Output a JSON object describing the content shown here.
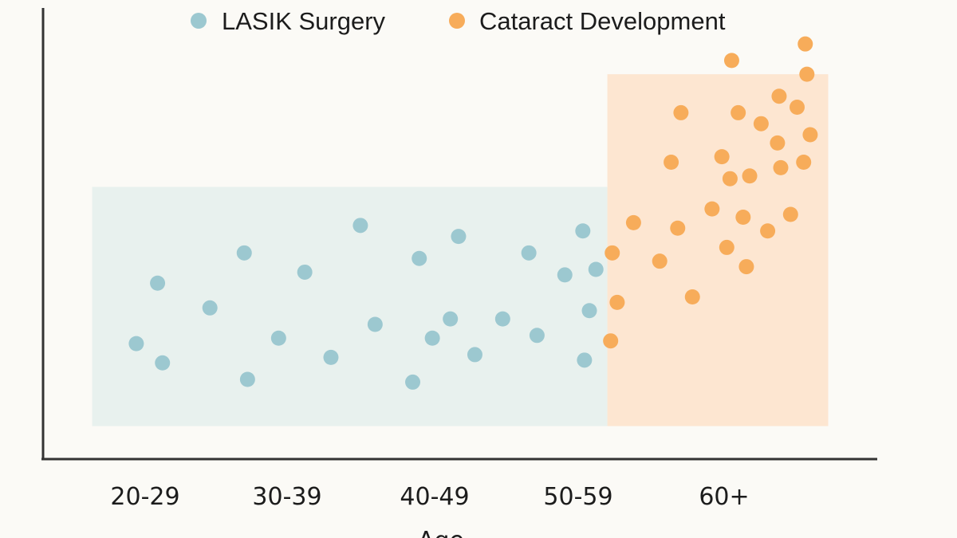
{
  "chart_data": {
    "type": "scatter",
    "title": "",
    "xlabel": "Age",
    "ylabel": "",
    "categories": [
      "20-29",
      "30-39",
      "40-49",
      "50-59",
      "60+"
    ],
    "grid": false,
    "legend": "top-center",
    "colors": {
      "lasik": "#9cc8d0",
      "cataract": "#f7ac5a",
      "lasik_band": "#e8f1ee",
      "cataract_band": "#fde6d1",
      "axis": "#333333"
    },
    "series": [
      {
        "name": "LASIK Surgery",
        "points": [
          {
            "x": 0.22,
            "y": 0.3
          },
          {
            "x": 0.35,
            "y": 0.52
          },
          {
            "x": 0.38,
            "y": 0.23
          },
          {
            "x": 0.67,
            "y": 0.43
          },
          {
            "x": 0.88,
            "y": 0.63
          },
          {
            "x": 0.9,
            "y": 0.17
          },
          {
            "x": 1.09,
            "y": 0.32
          },
          {
            "x": 1.25,
            "y": 0.56
          },
          {
            "x": 1.41,
            "y": 0.25
          },
          {
            "x": 1.59,
            "y": 0.73
          },
          {
            "x": 1.68,
            "y": 0.37
          },
          {
            "x": 1.91,
            "y": 0.16
          },
          {
            "x": 1.95,
            "y": 0.61
          },
          {
            "x": 2.03,
            "y": 0.32
          },
          {
            "x": 2.14,
            "y": 0.39
          },
          {
            "x": 2.19,
            "y": 0.69
          },
          {
            "x": 2.29,
            "y": 0.26
          },
          {
            "x": 2.46,
            "y": 0.39
          },
          {
            "x": 2.62,
            "y": 0.63
          },
          {
            "x": 2.67,
            "y": 0.33
          },
          {
            "x": 2.84,
            "y": 0.55
          },
          {
            "x": 2.95,
            "y": 0.71
          },
          {
            "x": 2.96,
            "y": 0.24
          },
          {
            "x": 2.99,
            "y": 0.42
          },
          {
            "x": 3.03,
            "y": 0.57
          }
        ]
      },
      {
        "name": "Cataract Development",
        "points": [
          {
            "x": 3.12,
            "y": 0.31
          },
          {
            "x": 3.16,
            "y": 0.45
          },
          {
            "x": 3.13,
            "y": 0.63
          },
          {
            "x": 3.26,
            "y": 0.74
          },
          {
            "x": 3.42,
            "y": 0.6
          },
          {
            "x": 3.49,
            "y": 0.96
          },
          {
            "x": 3.53,
            "y": 0.72
          },
          {
            "x": 3.55,
            "y": 1.14
          },
          {
            "x": 3.62,
            "y": 0.47
          },
          {
            "x": 3.74,
            "y": 0.79
          },
          {
            "x": 3.8,
            "y": 0.98
          },
          {
            "x": 3.86,
            "y": 1.33
          },
          {
            "x": 3.83,
            "y": 0.65
          },
          {
            "x": 3.85,
            "y": 0.9
          },
          {
            "x": 3.9,
            "y": 1.14
          },
          {
            "x": 3.93,
            "y": 0.76
          },
          {
            "x": 3.95,
            "y": 0.58
          },
          {
            "x": 3.97,
            "y": 0.91
          },
          {
            "x": 4.04,
            "y": 1.1
          },
          {
            "x": 4.08,
            "y": 0.71
          },
          {
            "x": 4.14,
            "y": 1.03
          },
          {
            "x": 4.15,
            "y": 1.2
          },
          {
            "x": 4.16,
            "y": 0.94
          },
          {
            "x": 4.22,
            "y": 0.77
          },
          {
            "x": 4.26,
            "y": 1.16
          },
          {
            "x": 4.3,
            "y": 0.96
          },
          {
            "x": 4.32,
            "y": 1.28
          },
          {
            "x": 4.34,
            "y": 1.06
          },
          {
            "x": 4.31,
            "y": 1.39
          }
        ]
      }
    ],
    "bands": [
      {
        "series": "LASIK Surgery",
        "x_from": -0.05,
        "x_to": 3.1,
        "y_from": 0.0,
        "y_to": 0.87
      },
      {
        "series": "Cataract Development",
        "x_from": 3.1,
        "x_to": 4.45,
        "y_from": 0.0,
        "y_to": 1.28
      }
    ],
    "xlim": [
      -0.35,
      4.75
    ],
    "ylim": [
      -0.12,
      1.55
    ]
  }
}
